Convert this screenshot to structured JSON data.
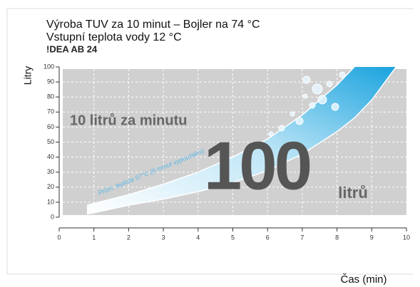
{
  "chart_data": {
    "type": "area",
    "title": "Výroba TUV za 10 minut – Bojler na 74 °C",
    "subtitle": "Vstupní teplota vody 12 °C",
    "brand": "!DEA AB 24",
    "y_label": "Litry",
    "x_label": "Čas (min)",
    "annotations": [
      "10 litrů za minutu",
      "Prům. teplota 57°C (6 minut vypouštění)",
      "100",
      "litrů"
    ],
    "x": [
      0.8,
      2,
      3,
      4,
      5,
      6,
      7,
      8,
      8.5,
      9,
      9.7
    ],
    "series": [
      {
        "color": "#29a8e0",
        "values": [
          8,
          15,
          22,
          30,
          40,
          52,
          68,
          88,
          100,
          null,
          null
        ]
      },
      {
        "color": "#29a8e0",
        "values": [
          2,
          8,
          12,
          17,
          23,
          31,
          42,
          57,
          66,
          78,
          100
        ]
      }
    ],
    "xlim": [
      0,
      10
    ],
    "xticks": [
      0,
      1,
      2,
      3,
      4,
      5,
      6,
      7,
      8,
      9,
      10
    ],
    "ylim": [
      0,
      100
    ],
    "yticks": [
      0,
      10,
      20,
      30,
      40,
      50,
      60,
      70,
      80,
      90,
      100
    ],
    "grid": true
  }
}
